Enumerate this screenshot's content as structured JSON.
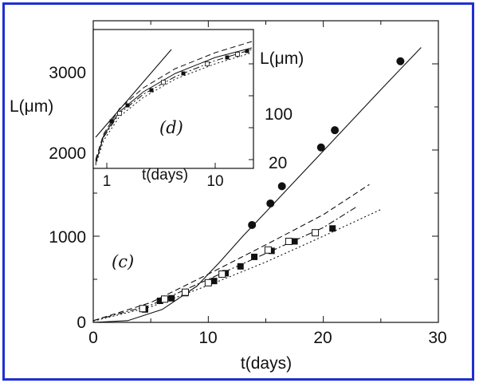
{
  "chart_data": [
    {
      "type": "scatter",
      "xlabel": "t(days)",
      "ylabel": "L(μm)",
      "panel_label": "(c)",
      "xlim": [
        0,
        30
      ],
      "ylim": [
        0,
        3500
      ],
      "xticks": [
        "0",
        "10",
        "20",
        "30"
      ],
      "yticks": [
        "0",
        "1000",
        "2000",
        "3000"
      ],
      "series": [
        {
          "marker": "filled-circle",
          "x": [
            13.8,
            15.4,
            16.4,
            19.8,
            21.0,
            26.7
          ],
          "y": [
            1130,
            1380,
            1580,
            2030,
            2230,
            3030
          ]
        },
        {
          "marker": "filled-square",
          "x": [
            4.5,
            5.8,
            6.8,
            8.0,
            10.5,
            11.5,
            12.8,
            14.0,
            15.5,
            17.5,
            20.8
          ],
          "y": [
            150,
            250,
            280,
            340,
            480,
            570,
            650,
            760,
            830,
            940,
            1090
          ]
        },
        {
          "marker": "open-square",
          "x": [
            4.3,
            6.2,
            8.0,
            10.0,
            11.2,
            15.2,
            17.0,
            19.3
          ],
          "y": [
            160,
            270,
            350,
            460,
            560,
            840,
            940,
            1040
          ]
        },
        {
          "style": "solid-line",
          "x": [
            0,
            3,
            6,
            9,
            11,
            13,
            15,
            20,
            25,
            28.5
          ],
          "y": [
            0,
            20,
            150,
            420,
            700,
            1000,
            1280,
            1990,
            2700,
            3190
          ]
        },
        {
          "style": "dashed-line",
          "x": [
            0,
            5,
            10,
            15,
            20,
            24
          ],
          "y": [
            20,
            230,
            560,
            900,
            1250,
            1600
          ]
        },
        {
          "style": "dash-dot-line",
          "x": [
            0,
            5,
            10,
            15,
            20,
            23
          ],
          "y": [
            20,
            200,
            500,
            800,
            1100,
            1350
          ]
        },
        {
          "style": "dotted-line",
          "x": [
            0,
            5,
            10,
            15,
            20,
            25
          ],
          "y": [
            15,
            180,
            430,
            700,
            1000,
            1310
          ]
        }
      ]
    },
    {
      "type": "line",
      "panel_label": "(d)",
      "xlabel": "t(days)",
      "ylabel": "L(μm)",
      "log_scale": {
        "x": true,
        "y": true
      },
      "xticks": [
        "1",
        "10"
      ],
      "yticks": [
        "100",
        "20"
      ],
      "series": [
        {
          "style": "solid-line"
        },
        {
          "style": "dashed-line"
        },
        {
          "style": "dash-dot-line"
        },
        {
          "style": "dotted-line"
        },
        {
          "marker": "filled-square"
        },
        {
          "marker": "open-square"
        }
      ]
    }
  ]
}
